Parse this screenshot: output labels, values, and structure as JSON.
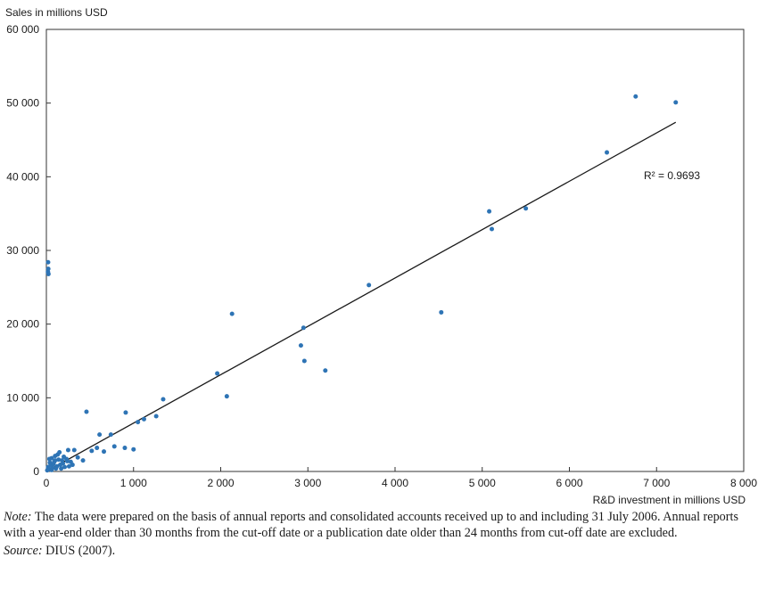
{
  "chart_data": {
    "type": "scatter",
    "ylabel": "Sales in millions USD",
    "xlabel": "R&D investment in millions USD",
    "xlim": [
      0,
      8000
    ],
    "ylim": [
      0,
      60000
    ],
    "x_ticks": [
      "0",
      "1 000",
      "2 000",
      "3 000",
      "4 000",
      "5 000",
      "6 000",
      "7 000",
      "8 000"
    ],
    "y_ticks": [
      "0",
      "10 000",
      "20 000",
      "30 000",
      "40 000",
      "50 000",
      "60 000"
    ],
    "grid": false,
    "trendline": {
      "x": [
        0,
        7220
      ],
      "y": [
        0,
        47400
      ]
    },
    "annotation": "R² = 0.9693",
    "colors": {
      "points": "#2e74b5",
      "trendline": "#1a1a1a",
      "plot_border": "#333333"
    },
    "points": [
      {
        "x": 6760,
        "y": 50900
      },
      {
        "x": 7220,
        "y": 50100
      },
      {
        "x": 6430,
        "y": 43300
      },
      {
        "x": 5080,
        "y": 35300
      },
      {
        "x": 5500,
        "y": 35700
      },
      {
        "x": 5110,
        "y": 32900
      },
      {
        "x": 3700,
        "y": 25300
      },
      {
        "x": 4530,
        "y": 21600
      },
      {
        "x": 2130,
        "y": 21400
      },
      {
        "x": 2950,
        "y": 19500
      },
      {
        "x": 2920,
        "y": 17100
      },
      {
        "x": 2960,
        "y": 15000
      },
      {
        "x": 3200,
        "y": 13700
      },
      {
        "x": 1960,
        "y": 13300
      },
      {
        "x": 2070,
        "y": 10200
      },
      {
        "x": 1340,
        "y": 9800
      },
      {
        "x": 460,
        "y": 8100
      },
      {
        "x": 910,
        "y": 8000
      },
      {
        "x": 1260,
        "y": 7500
      },
      {
        "x": 1120,
        "y": 7100
      },
      {
        "x": 1050,
        "y": 6700
      },
      {
        "x": 610,
        "y": 5000
      },
      {
        "x": 740,
        "y": 5000
      },
      {
        "x": 780,
        "y": 3400
      },
      {
        "x": 900,
        "y": 3200
      },
      {
        "x": 1000,
        "y": 3000
      },
      {
        "x": 580,
        "y": 3200
      },
      {
        "x": 660,
        "y": 2700
      },
      {
        "x": 520,
        "y": 2800
      },
      {
        "x": 420,
        "y": 1500
      },
      {
        "x": 360,
        "y": 1900
      },
      {
        "x": 320,
        "y": 2900
      },
      {
        "x": 250,
        "y": 2900
      },
      {
        "x": 20,
        "y": 28400
      },
      {
        "x": 22,
        "y": 27500
      },
      {
        "x": 18,
        "y": 27100
      },
      {
        "x": 24,
        "y": 26800
      },
      {
        "x": 150,
        "y": 2600
      },
      {
        "x": 130,
        "y": 2300
      },
      {
        "x": 100,
        "y": 2100
      },
      {
        "x": 60,
        "y": 1800
      },
      {
        "x": 200,
        "y": 2000
      },
      {
        "x": 230,
        "y": 1700
      },
      {
        "x": 180,
        "y": 1500
      },
      {
        "x": 90,
        "y": 1300
      },
      {
        "x": 40,
        "y": 1200
      },
      {
        "x": 280,
        "y": 1300
      },
      {
        "x": 300,
        "y": 900
      },
      {
        "x": 260,
        "y": 700
      },
      {
        "x": 210,
        "y": 600
      },
      {
        "x": 160,
        "y": 900
      },
      {
        "x": 120,
        "y": 700
      },
      {
        "x": 70,
        "y": 500
      },
      {
        "x": 30,
        "y": 300
      },
      {
        "x": 10,
        "y": 150
      },
      {
        "x": 50,
        "y": 900
      },
      {
        "x": 110,
        "y": 400
      },
      {
        "x": 140,
        "y": 1600
      },
      {
        "x": 80,
        "y": 1000
      },
      {
        "x": 190,
        "y": 1100
      },
      {
        "x": 240,
        "y": 1400
      },
      {
        "x": 170,
        "y": 400
      },
      {
        "x": 20,
        "y": 600
      },
      {
        "x": 60,
        "y": 200
      },
      {
        "x": 100,
        "y": 1500
      },
      {
        "x": 35,
        "y": 1700
      }
    ]
  },
  "notes": {
    "note_lead": "Note:",
    "note_text": " The data were prepared on the basis of annual reports and consolidated accounts received up to and including 31 July 2006. Annual reports with a year-end older than 30 months from the cut-off date or a publication date older than 24 months from cut-off date are excluded.",
    "source_lead": "Source:",
    "source_text": " DIUS (2007)."
  }
}
